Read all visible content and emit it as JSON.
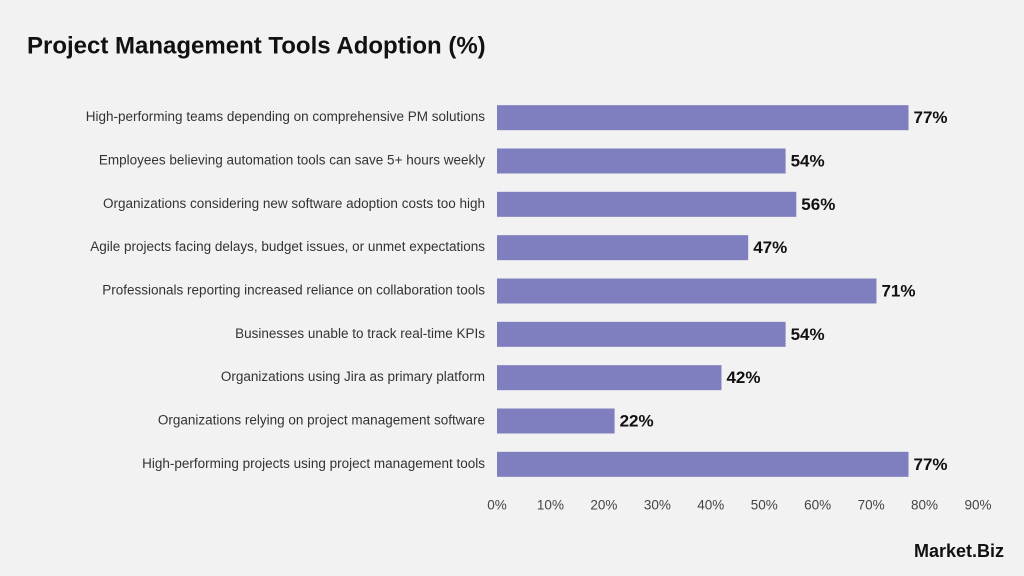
{
  "chart_data": {
    "type": "bar",
    "orientation": "horizontal",
    "title": "Project Management Tools Adoption (%)",
    "categories": [
      "High-performing teams depending on comprehensive PM solutions",
      "Employees believing automation tools can save 5+ hours weekly",
      "Organizations considering new software adoption costs too high",
      "Agile projects facing delays, budget issues, or unmet expectations",
      "Professionals reporting increased reliance on collaboration tools",
      "Businesses unable to track real-time KPIs",
      "Organizations using Jira as primary platform",
      "Organizations relying on project management software",
      "High-performing projects using project management tools"
    ],
    "values": [
      77,
      54,
      56,
      47,
      71,
      54,
      42,
      22,
      77
    ],
    "value_labels": [
      "77%",
      "54%",
      "56%",
      "47%",
      "71%",
      "54%",
      "42%",
      "22%",
      "77%"
    ],
    "color": "#7f7fbf",
    "xlim": [
      0,
      90
    ],
    "xticks": [
      {
        "value": 0,
        "label": "0%"
      },
      {
        "value": 10,
        "label": "10%"
      },
      {
        "value": 20,
        "label": "20%"
      },
      {
        "value": 30,
        "label": "30%"
      },
      {
        "value": 40,
        "label": "40%"
      },
      {
        "value": 50,
        "label": "50%"
      },
      {
        "value": 60,
        "label": "60%"
      },
      {
        "value": 70,
        "label": "70%"
      },
      {
        "value": 80,
        "label": "80%"
      },
      {
        "value": 90,
        "label": "90%"
      }
    ],
    "grid": false
  },
  "brand": "Market.Biz"
}
